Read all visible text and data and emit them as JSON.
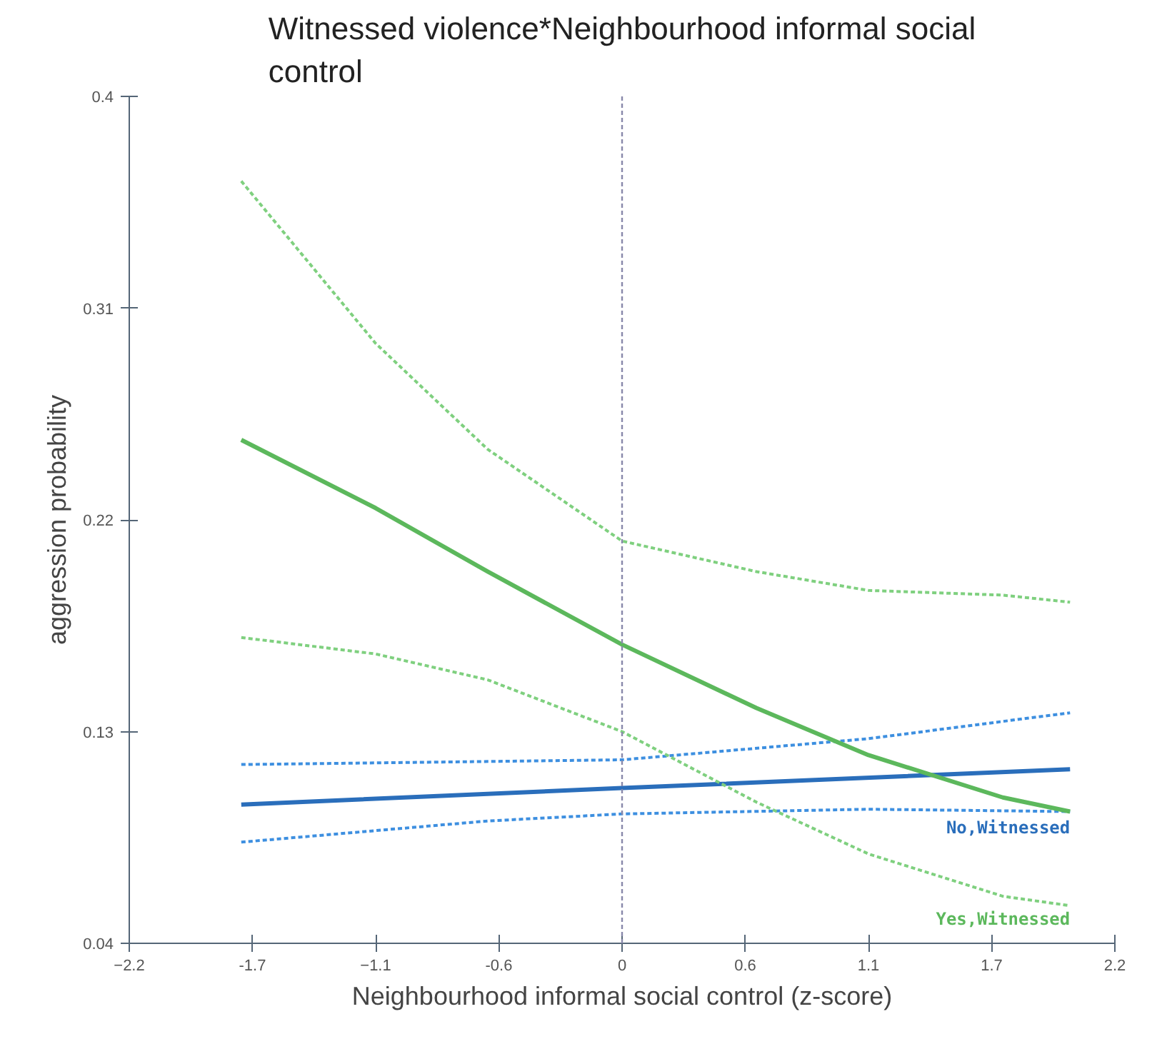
{
  "chart_data": {
    "type": "line",
    "title": "Witnessed violence*Neighbourhood informal social control",
    "xlabel": "Neighbourhood informal social control (z-score)",
    "ylabel": "aggression probability",
    "xlim": [
      -2.2,
      2.2
    ],
    "ylim": [
      0.04,
      0.4
    ],
    "xticks": [
      -2.2,
      {
        "value": -1.65,
        "label": "-1.7"
      },
      -1.1,
      {
        "value": -0.55,
        "label": "-0.6"
      },
      0.0,
      {
        "value": 0.55,
        "label": "0.6"
      },
      1.1,
      {
        "value": 1.65,
        "label": "1.7"
      },
      2.2
    ],
    "yticks": [
      0.04,
      0.13,
      0.22,
      0.31,
      0.4
    ],
    "grid": false,
    "ref_lines": [
      {
        "axis": "x",
        "value": 0.0,
        "color": "#8888aa",
        "line_style": "dotted"
      }
    ],
    "series": [
      {
        "name": "No,Witnessed",
        "color": "#2a6ebb",
        "line_style": "solid",
        "x": [
          -1.7,
          0.0,
          2.0
        ],
        "values": [
          0.099,
          0.106,
          0.114
        ]
      },
      {
        "color": "#3d8fe0",
        "line_style": "dotted",
        "x": [
          -1.7,
          0.0,
          1.1,
          2.0
        ],
        "values": [
          0.116,
          0.118,
          0.127,
          0.138
        ]
      },
      {
        "color": "#3d8fe0",
        "line_style": "dotted",
        "x": [
          -1.7,
          -0.6,
          0.0,
          1.1,
          2.0
        ],
        "values": [
          0.083,
          0.092,
          0.095,
          0.097,
          0.096
        ]
      },
      {
        "name": "Yes,Witnessed",
        "color": "#5cb85c",
        "line_style": "solid",
        "x": [
          -1.7,
          -1.1,
          -0.6,
          0.0,
          0.6,
          1.1,
          1.7,
          2.0
        ],
        "values": [
          0.254,
          0.225,
          0.198,
          0.167,
          0.14,
          0.12,
          0.102,
          0.096
        ]
      },
      {
        "color": "#7fd07f",
        "line_style": "dotted",
        "x": [
          -1.7,
          -1.1,
          -0.6,
          0.0,
          0.6,
          1.1,
          1.7,
          2.0
        ],
        "values": [
          0.364,
          0.295,
          0.25,
          0.211,
          0.198,
          0.19,
          0.188,
          0.185
        ]
      },
      {
        "color": "#7fd07f",
        "line_style": "dotted",
        "x": [
          -1.7,
          -1.1,
          -0.6,
          0.0,
          0.6,
          1.1,
          1.7,
          2.0
        ],
        "values": [
          0.17,
          0.163,
          0.152,
          0.13,
          0.1,
          0.078,
          0.06,
          0.056
        ]
      }
    ]
  }
}
